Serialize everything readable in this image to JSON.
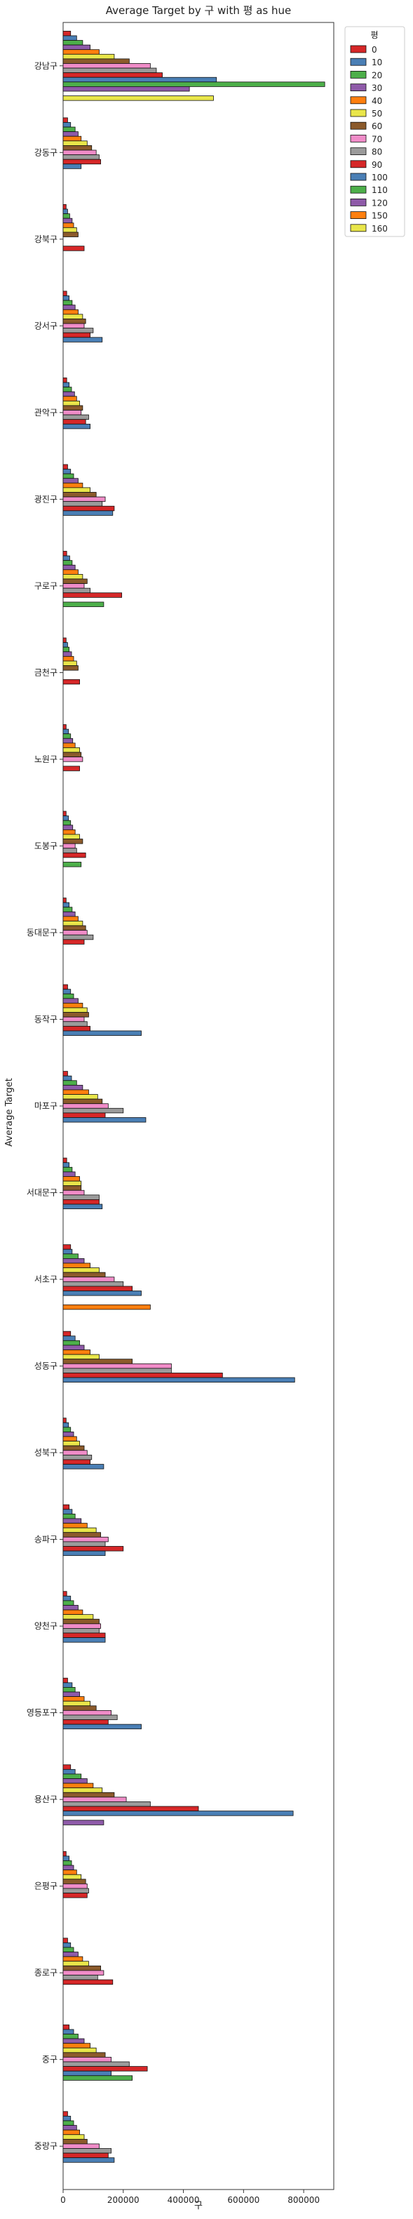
{
  "chart_data": {
    "type": "bar",
    "orientation": "horizontal",
    "title": "Average Target by 구 with 평 as hue",
    "xlabel": "구",
    "ylabel": "Average Target",
    "xlim": [
      0,
      900000
    ],
    "xticks": [
      0,
      200000,
      400000,
      600000,
      800000
    ],
    "grid": false,
    "legend_title": "평",
    "legend_placement": "outside-top-right",
    "categories": [
      "강남구",
      "강동구",
      "강북구",
      "강서구",
      "관악구",
      "광진구",
      "구로구",
      "금천구",
      "노원구",
      "도봉구",
      "동대문구",
      "동작구",
      "마포구",
      "서대문구",
      "서초구",
      "성동구",
      "성북구",
      "송파구",
      "양천구",
      "영등포구",
      "용산구",
      "은평구",
      "종로구",
      "중구",
      "중랑구"
    ],
    "series": [
      {
        "name": "0",
        "color": "#d62728",
        "values": [
          25000,
          15000,
          10000,
          12000,
          12000,
          15000,
          12000,
          10000,
          10000,
          10000,
          10000,
          15000,
          15000,
          12000,
          25000,
          25000,
          10000,
          20000,
          12000,
          15000,
          25000,
          10000,
          15000,
          20000,
          15000
        ]
      },
      {
        "name": "10",
        "color": "#4a7fb5",
        "values": [
          45000,
          25000,
          15000,
          20000,
          20000,
          25000,
          22000,
          15000,
          18000,
          18000,
          20000,
          25000,
          28000,
          20000,
          30000,
          40000,
          18000,
          30000,
          25000,
          30000,
          40000,
          20000,
          25000,
          35000,
          25000
        ]
      },
      {
        "name": "20",
        "color": "#4daf4a",
        "values": [
          65000,
          40000,
          22000,
          30000,
          28000,
          35000,
          30000,
          20000,
          25000,
          25000,
          30000,
          35000,
          45000,
          30000,
          50000,
          55000,
          25000,
          40000,
          35000,
          40000,
          60000,
          28000,
          35000,
          50000,
          35000
        ]
      },
      {
        "name": "30",
        "color": "#8e5aa8",
        "values": [
          90000,
          50000,
          30000,
          40000,
          38000,
          50000,
          40000,
          28000,
          32000,
          32000,
          40000,
          50000,
          65000,
          40000,
          70000,
          70000,
          35000,
          60000,
          50000,
          55000,
          80000,
          35000,
          50000,
          70000,
          45000
        ]
      },
      {
        "name": "40",
        "color": "#ff7f0e",
        "values": [
          120000,
          60000,
          35000,
          50000,
          45000,
          65000,
          50000,
          35000,
          40000,
          40000,
          50000,
          65000,
          85000,
          55000,
          90000,
          90000,
          45000,
          80000,
          65000,
          70000,
          100000,
          45000,
          65000,
          90000,
          55000
        ]
      },
      {
        "name": "50",
        "color": "#e9e64a",
        "values": [
          170000,
          80000,
          45000,
          65000,
          55000,
          90000,
          65000,
          45000,
          55000,
          55000,
          65000,
          80000,
          115000,
          60000,
          120000,
          120000,
          55000,
          110000,
          100000,
          90000,
          130000,
          60000,
          85000,
          110000,
          70000
        ]
      },
      {
        "name": "60",
        "color": "#8b5a2b",
        "values": [
          220000,
          95000,
          50000,
          75000,
          65000,
          110000,
          80000,
          50000,
          60000,
          65000,
          75000,
          85000,
          130000,
          60000,
          140000,
          230000,
          70000,
          125000,
          120000,
          110000,
          170000,
          75000,
          125000,
          140000,
          80000
        ]
      },
      {
        "name": "70",
        "color": "#f08cc8",
        "values": [
          290000,
          110000,
          0,
          70000,
          60000,
          140000,
          70000,
          0,
          65000,
          40000,
          80000,
          70000,
          150000,
          70000,
          170000,
          360000,
          80000,
          150000,
          125000,
          160000,
          210000,
          80000,
          135000,
          160000,
          120000
        ]
      },
      {
        "name": "80",
        "color": "#9b9b9b",
        "values": [
          310000,
          120000,
          0,
          100000,
          85000,
          130000,
          90000,
          0,
          0,
          45000,
          100000,
          80000,
          200000,
          120000,
          200000,
          360000,
          95000,
          140000,
          120000,
          180000,
          290000,
          85000,
          115000,
          220000,
          160000
        ]
      },
      {
        "name": "90",
        "color": "#d62728",
        "values": [
          330000,
          125000,
          70000,
          90000,
          75000,
          170000,
          195000,
          55000,
          55000,
          75000,
          70000,
          90000,
          140000,
          120000,
          230000,
          530000,
          90000,
          200000,
          140000,
          150000,
          450000,
          80000,
          165000,
          280000,
          150000
        ]
      },
      {
        "name": "100",
        "color": "#4a7fb5",
        "values": [
          510000,
          60000,
          0,
          130000,
          90000,
          165000,
          0,
          0,
          0,
          0,
          0,
          260000,
          275000,
          130000,
          260000,
          770000,
          135000,
          140000,
          140000,
          260000,
          765000,
          0,
          0,
          160000,
          170000
        ]
      },
      {
        "name": "110",
        "color": "#4daf4a",
        "values": [
          870000,
          0,
          0,
          0,
          0,
          0,
          135000,
          0,
          0,
          60000,
          0,
          0,
          0,
          0,
          0,
          0,
          0,
          0,
          0,
          0,
          0,
          0,
          0,
          230000,
          0
        ]
      },
      {
        "name": "120",
        "color": "#8e5aa8",
        "values": [
          420000,
          0,
          0,
          0,
          0,
          0,
          0,
          0,
          0,
          0,
          0,
          0,
          0,
          0,
          0,
          0,
          0,
          0,
          0,
          0,
          135000,
          0,
          0,
          0,
          0
        ]
      },
      {
        "name": "150",
        "color": "#ff7f0e",
        "values": [
          0,
          0,
          0,
          0,
          0,
          0,
          0,
          0,
          0,
          0,
          0,
          0,
          0,
          0,
          290000,
          0,
          0,
          0,
          0,
          0,
          0,
          0,
          0,
          0,
          0
        ]
      },
      {
        "name": "160",
        "color": "#e9e64a",
        "values": [
          500000,
          0,
          0,
          0,
          0,
          0,
          0,
          0,
          0,
          0,
          0,
          0,
          0,
          0,
          0,
          0,
          0,
          0,
          0,
          0,
          0,
          0,
          0,
          0,
          0
        ]
      }
    ]
  }
}
